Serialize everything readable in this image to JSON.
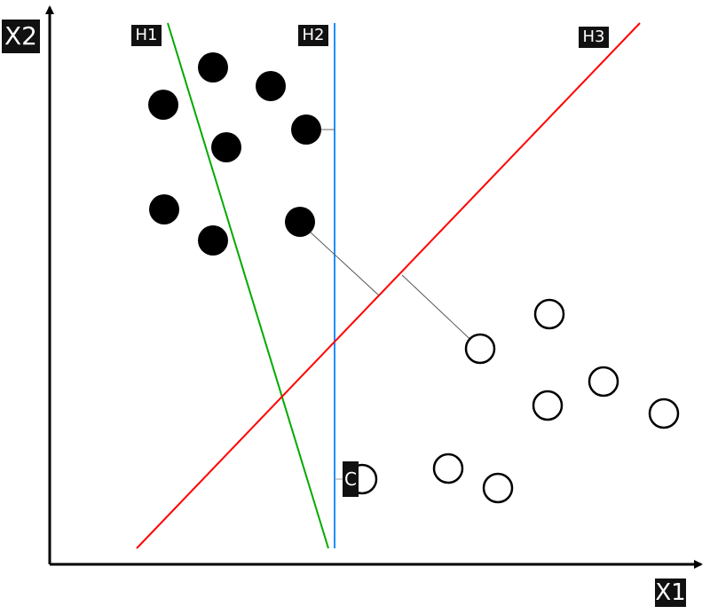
{
  "axes": {
    "x_label": "X1",
    "y_label": "X2"
  },
  "hyperplanes": [
    {
      "label": "H1",
      "color": "#00aa00"
    },
    {
      "label": "H2",
      "color": "#1e8fff"
    },
    {
      "label": "H3",
      "color": "#ff0000"
    }
  ],
  "point_label": "C",
  "classes": {
    "filled_color": "#000000",
    "hollow_color": "#ffffff"
  }
}
